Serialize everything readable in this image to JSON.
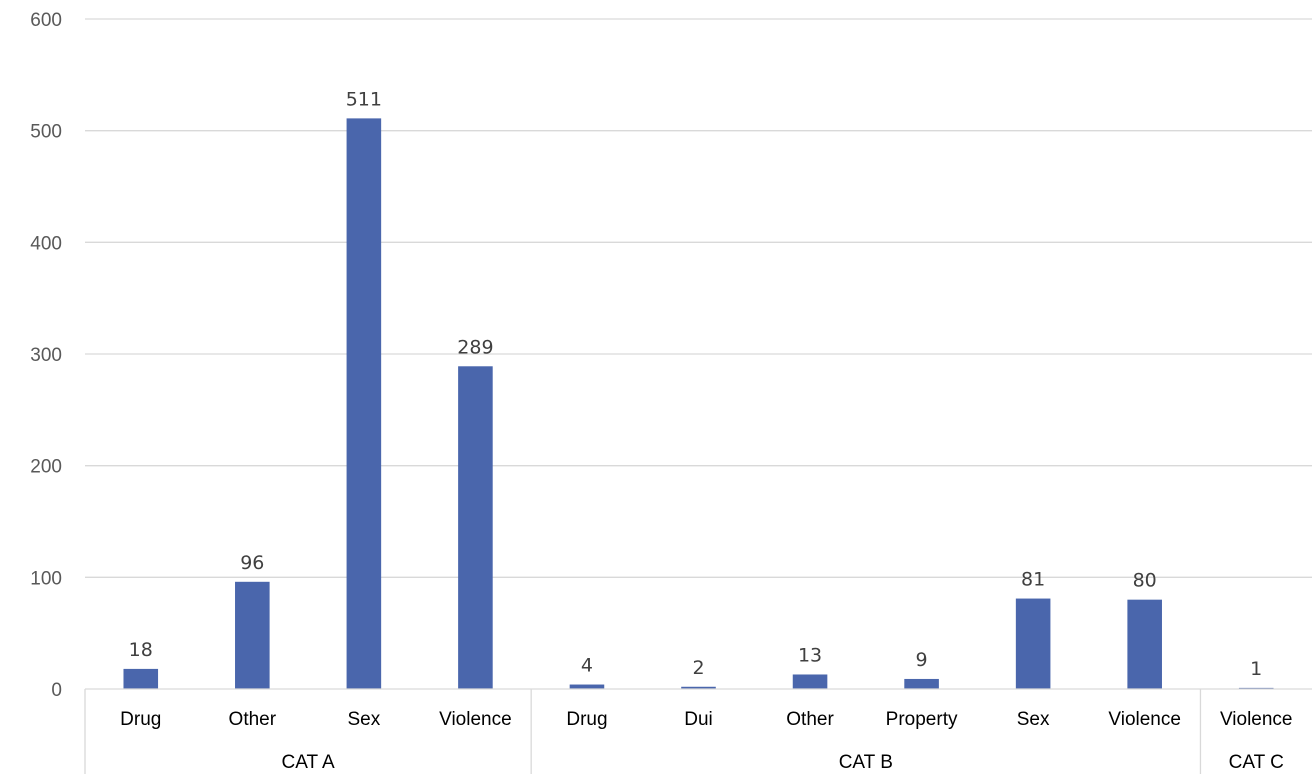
{
  "chart_data": {
    "type": "bar",
    "title": "",
    "xlabel": "",
    "ylabel": "",
    "ylim": [
      0,
      600
    ],
    "yticks": [
      "0",
      "100",
      "200",
      "300",
      "400",
      "500",
      "600"
    ],
    "grid": true,
    "legend": "none",
    "bar_color": "#4a66ac",
    "groups": [
      {
        "name": "CAT A",
        "categories": [
          "Drug",
          "Other",
          "Sex",
          "Violence"
        ],
        "values": [
          18,
          96,
          511,
          289
        ]
      },
      {
        "name": "CAT B",
        "categories": [
          "Drug",
          "Dui",
          "Other",
          "Property",
          "Sex",
          "Violence"
        ],
        "values": [
          4,
          2,
          13,
          9,
          81,
          80
        ]
      },
      {
        "name": "CAT C",
        "categories": [
          "Violence"
        ],
        "values": [
          1
        ]
      }
    ]
  }
}
